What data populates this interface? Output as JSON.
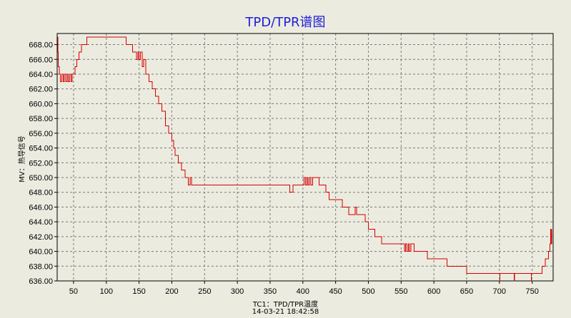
{
  "chart_data": {
    "type": "line",
    "title": "TPD/TPR谱图",
    "xlabel": "TC1：TPD/TPR温度",
    "ylabel": "MV：热导信号",
    "timestamp": "14-03-21 18:42:58",
    "xlim": [
      25,
      782
    ],
    "ylim": [
      636,
      669.5
    ],
    "x_ticks": [
      50,
      100,
      150,
      200,
      250,
      300,
      350,
      400,
      450,
      500,
      550,
      600,
      650,
      700,
      750
    ],
    "y_ticks": [
      636,
      638,
      640,
      642,
      644,
      646,
      648,
      650,
      652,
      654,
      656,
      658,
      660,
      662,
      664,
      666,
      668
    ],
    "y_tick_labels": [
      "636.00",
      "638.00",
      "640.00",
      "642.00",
      "644.00",
      "646.00",
      "648.00",
      "650.00",
      "652.00",
      "654.00",
      "656.00",
      "658.00",
      "660.00",
      "662.00",
      "664.00",
      "666.00",
      "668.00"
    ],
    "grid": true,
    "line_color": "#d40000",
    "series": [
      {
        "x": [
          25.5,
          26,
          26.5,
          28,
          30,
          32,
          34,
          36,
          38,
          40,
          42,
          44,
          46,
          48,
          52,
          55,
          58,
          60,
          62,
          65,
          70,
          75,
          80,
          90,
          100,
          110,
          120,
          130,
          135,
          140,
          145,
          146,
          148,
          150,
          152,
          155,
          157,
          160,
          165,
          170,
          175,
          180,
          185,
          190,
          195,
          200,
          203,
          205,
          208,
          210,
          213,
          215,
          218,
          220,
          223,
          225,
          228,
          230,
          233,
          235,
          238,
          240,
          243,
          245,
          248,
          250,
          252,
          254,
          256,
          258,
          260,
          263,
          265,
          270,
          300,
          350,
          370,
          375,
          380,
          385,
          395,
          400,
          402,
          404,
          406,
          408,
          410,
          412,
          415,
          425,
          430,
          435,
          440,
          460,
          470,
          480,
          482,
          484,
          487,
          490,
          495,
          500,
          505,
          510,
          515,
          520,
          530,
          533,
          535,
          540,
          550,
          555,
          557,
          559,
          561,
          563,
          565,
          570,
          580,
          590,
          600,
          610,
          620,
          630,
          640,
          650,
          660,
          670,
          680,
          690,
          700,
          700.5,
          701,
          705,
          722,
          722.5,
          723,
          730,
          748,
          748.5,
          749,
          755,
          760,
          765,
          770,
          775,
          777,
          778,
          779,
          780
        ],
        "y": [
          669,
          667,
          665,
          664,
          663,
          664,
          663,
          664,
          663,
          664,
          663,
          664,
          663,
          664,
          665,
          666,
          667,
          667,
          668,
          668,
          669,
          669,
          669,
          669,
          669,
          669,
          669,
          668,
          668,
          667,
          667,
          666,
          667,
          666,
          667,
          665,
          666,
          664,
          663,
          662,
          661,
          660,
          659,
          657,
          656,
          655,
          654,
          653,
          653,
          652,
          652,
          651,
          651,
          650,
          650,
          649,
          650,
          649,
          649,
          649,
          649,
          649,
          649,
          649,
          649,
          649,
          649,
          649,
          649,
          649,
          649,
          649,
          649,
          649,
          649,
          649,
          649,
          649,
          648,
          649,
          649,
          649,
          650,
          649,
          650,
          649,
          650,
          649,
          650,
          649,
          649,
          648,
          647,
          646,
          645,
          646,
          645,
          645,
          645,
          645,
          644,
          643,
          643,
          642,
          642,
          641,
          641,
          641,
          641,
          641,
          641,
          640,
          641,
          640,
          641,
          640,
          641,
          640,
          640,
          639,
          639,
          639,
          638,
          638,
          638,
          637,
          637,
          637,
          637,
          637,
          637,
          636,
          637,
          637,
          637,
          636,
          637,
          637,
          637,
          636,
          637,
          637,
          637,
          638,
          639,
          640,
          641,
          643,
          641,
          643
        ]
      }
    ]
  }
}
